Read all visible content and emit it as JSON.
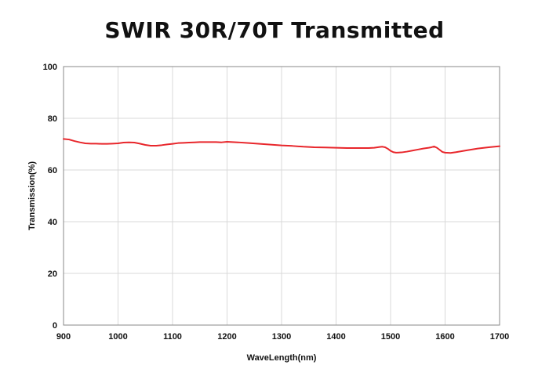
{
  "chart_data": {
    "type": "line",
    "title": "SWIR 30R/70T Transmitted",
    "xlabel": "WaveLength(nm)",
    "ylabel": "Transmission(%)",
    "xlim": [
      900,
      1700
    ],
    "ylim": [
      0,
      100
    ],
    "xticks": [
      900,
      1000,
      1100,
      1200,
      1300,
      1400,
      1500,
      1600,
      1700
    ],
    "yticks": [
      0,
      20,
      40,
      60,
      80,
      100
    ],
    "grid": true,
    "legend": "none",
    "series_color": "#e8262b",
    "grid_color": "#d9d9d9",
    "axis_color": "#888888",
    "series": [
      {
        "x": [
          900,
          910,
          920,
          930,
          940,
          950,
          960,
          970,
          980,
          990,
          1000,
          1010,
          1020,
          1030,
          1040,
          1050,
          1060,
          1070,
          1080,
          1090,
          1100,
          1110,
          1120,
          1130,
          1140,
          1150,
          1160,
          1170,
          1180,
          1190,
          1200,
          1220,
          1240,
          1260,
          1280,
          1300,
          1320,
          1340,
          1360,
          1380,
          1400,
          1420,
          1440,
          1460,
          1470,
          1480,
          1485,
          1490,
          1495,
          1500,
          1505,
          1510,
          1520,
          1530,
          1540,
          1550,
          1560,
          1570,
          1575,
          1580,
          1585,
          1590,
          1595,
          1600,
          1610,
          1620,
          1640,
          1660,
          1680,
          1700
        ],
        "y": [
          72.0,
          71.8,
          71.2,
          70.7,
          70.3,
          70.2,
          70.2,
          70.1,
          70.1,
          70.2,
          70.3,
          70.6,
          70.7,
          70.6,
          70.2,
          69.7,
          69.4,
          69.4,
          69.6,
          69.9,
          70.1,
          70.4,
          70.5,
          70.6,
          70.7,
          70.8,
          70.8,
          70.8,
          70.8,
          70.7,
          70.9,
          70.7,
          70.4,
          70.1,
          69.8,
          69.5,
          69.3,
          69.0,
          68.8,
          68.7,
          68.6,
          68.5,
          68.5,
          68.5,
          68.6,
          68.9,
          69.0,
          68.8,
          68.2,
          67.4,
          66.9,
          66.7,
          66.8,
          67.1,
          67.5,
          67.9,
          68.3,
          68.6,
          68.8,
          69.1,
          68.6,
          67.8,
          67.0,
          66.7,
          66.6,
          66.9,
          67.6,
          68.3,
          68.8,
          69.2
        ]
      }
    ]
  }
}
